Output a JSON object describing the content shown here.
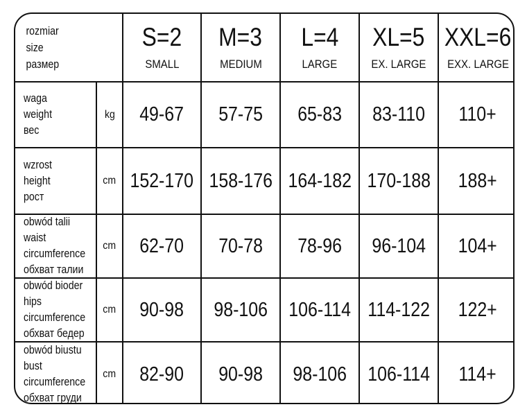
{
  "header": {
    "label": [
      "rozmiar",
      "size",
      "размер"
    ],
    "sizes": [
      {
        "code": "S=2",
        "name": "SMALL"
      },
      {
        "code": "M=3",
        "name": "MEDIUM"
      },
      {
        "code": "L=4",
        "name": "LARGE"
      },
      {
        "code": "XL=5",
        "name": "EX. LARGE"
      },
      {
        "code": "XXL=6",
        "name": "EXX. LARGE"
      }
    ]
  },
  "rows": [
    {
      "label": [
        "waga",
        "weight",
        "вес"
      ],
      "unit": "kg",
      "values": [
        "49-67",
        "57-75",
        "65-83",
        "83-110",
        "110+"
      ]
    },
    {
      "label": [
        "wzrost",
        "height",
        "рост"
      ],
      "unit": "cm",
      "values": [
        "152-170",
        "158-176",
        "164-182",
        "170-188",
        "188+"
      ]
    },
    {
      "label": [
        "obwód talii",
        "waist",
        "circumference",
        "обхват талии"
      ],
      "unit": "cm",
      "values": [
        "62-70",
        "70-78",
        "78-96",
        "96-104",
        "104+"
      ]
    },
    {
      "label": [
        "obwód bioder",
        "hips",
        "circumference",
        "обхват бедер"
      ],
      "unit": "cm",
      "values": [
        "90-98",
        "98-106",
        "106-114",
        "114-122",
        "122+"
      ]
    },
    {
      "label": [
        "obwód biustu",
        "bust",
        "circumference",
        "обхват груди"
      ],
      "unit": "cm",
      "values": [
        "82-90",
        "90-98",
        "98-106",
        "106-114",
        "114+"
      ]
    }
  ]
}
